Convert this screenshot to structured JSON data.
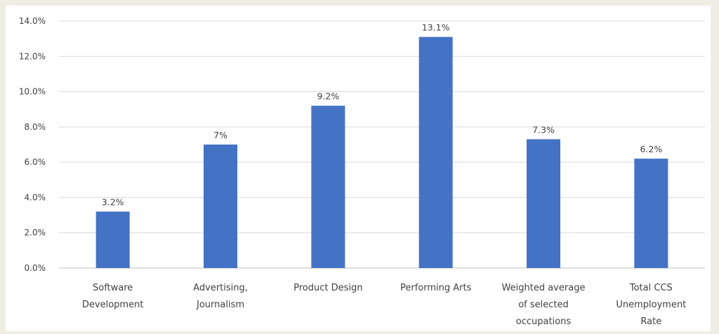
{
  "chart_data": {
    "type": "bar",
    "title": "",
    "xlabel": "",
    "ylabel": "",
    "ylim": [
      0,
      14
    ],
    "yticks": [
      "0.0%",
      "2.0%",
      "4.0%",
      "6.0%",
      "8.0%",
      "10.0%",
      "12.0%",
      "14.0%"
    ],
    "grid": true,
    "legend": "none",
    "categories": [
      [
        "Software",
        "Development"
      ],
      [
        "Advertising,",
        "Journalism"
      ],
      [
        "Product Design"
      ],
      [
        "Performing Arts"
      ],
      [
        "Weighted average",
        "of selected",
        "occupations"
      ],
      [
        "Total CCS",
        "Unemployment",
        "Rate"
      ]
    ],
    "series": [
      {
        "color": "#4472c4",
        "values": [
          3.2,
          7.0,
          9.2,
          13.1,
          7.3,
          6.2
        ],
        "labels": [
          "3.2%",
          "7%",
          "9.2%",
          "13.1%",
          "7.3%",
          "6.2%"
        ]
      }
    ]
  }
}
